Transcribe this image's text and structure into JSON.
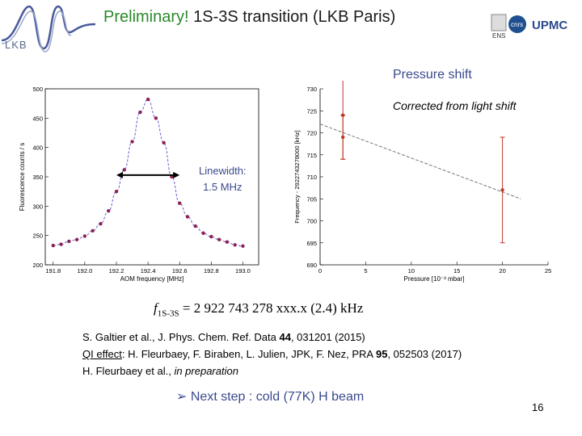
{
  "slide": {
    "title_prelim": "Preliminary!",
    "title_rest": " 1S-3S transition (LKB Paris)",
    "lkb_label": "LKB",
    "logos": {
      "ens": "ENS",
      "cnrs": "cnrs",
      "upmc": "UPMC"
    },
    "pressure_title": "Pressure shift",
    "corrected_note": "Corrected from light shift",
    "linewidth_label": "Linewidth:",
    "linewidth_value": "1.5 MHz",
    "result": {
      "symbol": "f",
      "subscript": "1S-3S",
      "value_text": " = 2 922 743 278 xxx.x (2.4) kHz"
    },
    "references": [
      {
        "pre": "S. Galtier et al., J. Phys. Chem. Ref. Data ",
        "bold": "44",
        "post": ", 031201 (2015)"
      },
      {
        "underlined": "QI effect",
        "pre": ": H. Fleurbaey, F. Biraben, L. Julien, JPK, F. Nez, PRA ",
        "bold": "95",
        "post": ", 052503 (2017)"
      },
      {
        "pre": "H. Fleurbaey et al., ",
        "italic": "in preparation"
      }
    ],
    "next_step": "Next step : cold (77K) H beam",
    "page_number": "16",
    "colors": {
      "accent_blue": "#3a4a8c",
      "prelim_green": "#2a8a2a",
      "data_red": "#c0392b",
      "fit_purple": "#6a5acd",
      "point_maroon": "#8b2252"
    }
  },
  "chart_data": [
    {
      "type": "scatter",
      "title": "",
      "xlabel": "AOM frequency [MHz]",
      "ylabel": "Fluorescence counts / s",
      "xlim": [
        191.75,
        193.1
      ],
      "ylim": [
        200,
        500
      ],
      "xticks": [
        "191.8",
        "192.0",
        "192.2",
        "192.4",
        "192.6",
        "192.8",
        "193.0"
      ],
      "yticks": [
        "200",
        "250",
        "300",
        "350",
        "400",
        "450",
        "500"
      ],
      "x": [
        191.8,
        191.85,
        191.9,
        191.95,
        192.0,
        192.05,
        192.1,
        192.15,
        192.2,
        192.25,
        192.3,
        192.35,
        192.4,
        192.45,
        192.5,
        192.55,
        192.6,
        192.65,
        192.7,
        192.75,
        192.8,
        192.85,
        192.9,
        192.95,
        193.0
      ],
      "y": [
        233,
        235,
        240,
        243,
        249,
        258,
        270,
        292,
        325,
        362,
        410,
        460,
        482,
        450,
        408,
        350,
        305,
        282,
        266,
        254,
        248,
        243,
        239,
        234,
        232
      ],
      "fit": "lorentzian",
      "linewidth_arrow": {
        "x_from": 192.2,
        "x_to": 192.6,
        "y": 353
      }
    },
    {
      "type": "scatter",
      "title": "",
      "xlabel": "Pressure [10⁻³ mbar]",
      "ylabel": "Frequency - 2922743278000 [kHz]",
      "xlim": [
        0,
        25
      ],
      "ylim": [
        690,
        730
      ],
      "xticks": [
        "0",
        "5",
        "10",
        "15",
        "20",
        "25"
      ],
      "yticks": [
        "690",
        "695",
        "700",
        "705",
        "710",
        "715",
        "720",
        "725",
        "730"
      ],
      "points": [
        {
          "x": 2.5,
          "y": 724,
          "err": 10
        },
        {
          "x": 2.5,
          "y": 719,
          "err": 5
        },
        {
          "x": 20,
          "y": 707,
          "err": 12
        }
      ],
      "fit_line": {
        "x": [
          0,
          22
        ],
        "y": [
          722,
          705
        ]
      }
    }
  ]
}
